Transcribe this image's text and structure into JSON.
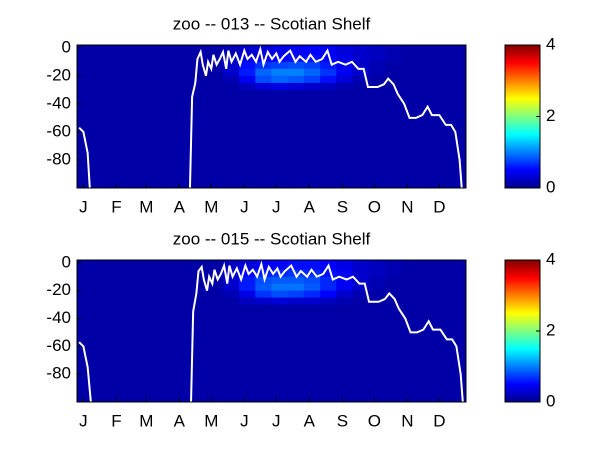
{
  "chart_data": [
    {
      "type": "heatmap",
      "title": "zoo -- 013 -- Scotian Shelf",
      "xlim": [
        0,
        365
      ],
      "ylim": [
        -100,
        2
      ],
      "xticks": [
        {
          "value": 6,
          "label": "J"
        },
        {
          "value": 37,
          "label": "F"
        },
        {
          "value": 65,
          "label": "M"
        },
        {
          "value": 96,
          "label": "A"
        },
        {
          "value": 126,
          "label": "M"
        },
        {
          "value": 157,
          "label": "J"
        },
        {
          "value": 187,
          "label": "J"
        },
        {
          "value": 218,
          "label": "A"
        },
        {
          "value": 249,
          "label": "S"
        },
        {
          "value": 279,
          "label": "O"
        },
        {
          "value": 310,
          "label": "N"
        },
        {
          "value": 340,
          "label": "D"
        }
      ],
      "yticks": [
        0,
        -20,
        -40,
        -60,
        -80
      ],
      "y_bins": [
        2,
        -5,
        -10,
        -15,
        -20,
        -25,
        -30,
        -100
      ],
      "z": [
        [
          0.15,
          0.15,
          0.15,
          0.15,
          0.15,
          0.15,
          0.15,
          0.15,
          0.15,
          0.2,
          0.3,
          0.35,
          0.4,
          0.45,
          0.5,
          0.45,
          0.35,
          0.3,
          0.25,
          0.2,
          0.15,
          0.15,
          0.15,
          0.15
        ],
        [
          0.15,
          0.15,
          0.15,
          0.15,
          0.15,
          0.15,
          0.15,
          0.15,
          0.15,
          0.25,
          0.4,
          0.45,
          0.5,
          0.55,
          0.55,
          0.5,
          0.4,
          0.3,
          0.25,
          0.2,
          0.15,
          0.15,
          0.15,
          0.15
        ],
        [
          0.15,
          0.15,
          0.15,
          0.15,
          0.15,
          0.15,
          0.15,
          0.15,
          0.15,
          0.3,
          0.55,
          0.7,
          0.75,
          0.8,
          0.75,
          0.6,
          0.45,
          0.3,
          0.2,
          0.15,
          0.15,
          0.15,
          0.15,
          0.15
        ],
        [
          0.15,
          0.15,
          0.15,
          0.15,
          0.15,
          0.15,
          0.15,
          0.15,
          0.15,
          0.3,
          0.6,
          0.9,
          1.0,
          1.0,
          0.9,
          0.7,
          0.45,
          0.3,
          0.2,
          0.15,
          0.15,
          0.15,
          0.15,
          0.15
        ],
        [
          0.15,
          0.15,
          0.15,
          0.15,
          0.15,
          0.15,
          0.15,
          0.15,
          0.15,
          0.2,
          0.45,
          0.8,
          0.9,
          0.85,
          0.75,
          0.55,
          0.35,
          0.2,
          0.15,
          0.15,
          0.15,
          0.15,
          0.15,
          0.15
        ],
        [
          0.15,
          0.15,
          0.15,
          0.15,
          0.15,
          0.15,
          0.15,
          0.15,
          0.15,
          0.15,
          0.25,
          0.35,
          0.4,
          0.35,
          0.3,
          0.25,
          0.2,
          0.15,
          0.15,
          0.15,
          0.15,
          0.15,
          0.15,
          0.15
        ],
        [
          0.15,
          0.15,
          0.15,
          0.15,
          0.15,
          0.15,
          0.15,
          0.15,
          0.15,
          0.15,
          0.15,
          0.15,
          0.15,
          0.15,
          0.15,
          0.15,
          0.15,
          0.15,
          0.15,
          0.15,
          0.15,
          0.15,
          0.15,
          0.15
        ]
      ],
      "clim": [
        0,
        4
      ],
      "cticks": [
        0,
        2,
        4
      ],
      "line": {
        "color": "#ffffff",
        "x": [
          2,
          6,
          10,
          12,
          null,
          106,
          108,
          111,
          113,
          116,
          118,
          121,
          123,
          126,
          128,
          131,
          134,
          137,
          140,
          142,
          145,
          149,
          153,
          157,
          160,
          164,
          168,
          172,
          175,
          179,
          183,
          187,
          190,
          194,
          200,
          205,
          209,
          215,
          219,
          224,
          230,
          235,
          239,
          245,
          252,
          258,
          264,
          269,
          273,
          282,
          288,
          292,
          297,
          301,
          307,
          312,
          318,
          324,
          329,
          333,
          340,
          346,
          351,
          355,
          359,
          361
        ],
        "y": [
          -57,
          -60,
          -75,
          -100,
          null,
          -100,
          -35,
          -25,
          -8,
          -3,
          -12,
          -20,
          -10,
          -15,
          -5,
          -12,
          -8,
          -3,
          -15,
          -2,
          -10,
          -4,
          -12,
          -2,
          -8,
          -5,
          -10,
          -1,
          -12,
          -3,
          -8,
          -4,
          -10,
          -6,
          -2,
          -10,
          -6,
          -10,
          -5,
          -10,
          -8,
          -2,
          -12,
          -10,
          -12,
          -10,
          -15,
          -15,
          -28,
          -28,
          -26,
          -22,
          -26,
          -33,
          -40,
          -50,
          -50,
          -48,
          -42,
          -48,
          -48,
          -55,
          -55,
          -60,
          -80,
          -100
        ]
      }
    },
    {
      "type": "heatmap",
      "title": "zoo -- 015 -- Scotian Shelf",
      "xlim": [
        0,
        365
      ],
      "ylim": [
        -100,
        2
      ],
      "xticks": [
        {
          "value": 6,
          "label": "J"
        },
        {
          "value": 37,
          "label": "F"
        },
        {
          "value": 65,
          "label": "M"
        },
        {
          "value": 96,
          "label": "A"
        },
        {
          "value": 126,
          "label": "M"
        },
        {
          "value": 157,
          "label": "J"
        },
        {
          "value": 187,
          "label": "J"
        },
        {
          "value": 218,
          "label": "A"
        },
        {
          "value": 249,
          "label": "S"
        },
        {
          "value": 279,
          "label": "O"
        },
        {
          "value": 310,
          "label": "N"
        },
        {
          "value": 340,
          "label": "D"
        }
      ],
      "yticks": [
        0,
        -20,
        -40,
        -60,
        -80
      ],
      "y_bins": [
        2,
        -5,
        -10,
        -15,
        -20,
        -25,
        -30,
        -100
      ],
      "z": [
        [
          0.15,
          0.15,
          0.15,
          0.15,
          0.15,
          0.15,
          0.15,
          0.15,
          0.15,
          0.25,
          0.35,
          0.45,
          0.5,
          0.55,
          0.55,
          0.5,
          0.4,
          0.3,
          0.25,
          0.2,
          0.15,
          0.15,
          0.15,
          0.15
        ],
        [
          0.15,
          0.15,
          0.15,
          0.15,
          0.15,
          0.15,
          0.15,
          0.15,
          0.15,
          0.3,
          0.5,
          0.6,
          0.65,
          0.7,
          0.65,
          0.55,
          0.45,
          0.3,
          0.25,
          0.2,
          0.15,
          0.15,
          0.15,
          0.15
        ],
        [
          0.15,
          0.15,
          0.15,
          0.15,
          0.15,
          0.15,
          0.15,
          0.15,
          0.15,
          0.3,
          0.6,
          0.8,
          0.85,
          0.85,
          0.8,
          0.65,
          0.45,
          0.3,
          0.2,
          0.15,
          0.15,
          0.15,
          0.15,
          0.15
        ],
        [
          0.15,
          0.15,
          0.15,
          0.15,
          0.15,
          0.15,
          0.15,
          0.15,
          0.15,
          0.3,
          0.6,
          0.85,
          0.95,
          0.95,
          0.85,
          0.65,
          0.45,
          0.3,
          0.2,
          0.15,
          0.15,
          0.15,
          0.15,
          0.15
        ],
        [
          0.15,
          0.15,
          0.15,
          0.15,
          0.15,
          0.15,
          0.15,
          0.15,
          0.15,
          0.2,
          0.4,
          0.7,
          0.8,
          0.75,
          0.65,
          0.5,
          0.3,
          0.2,
          0.15,
          0.15,
          0.15,
          0.15,
          0.15,
          0.15
        ],
        [
          0.15,
          0.15,
          0.15,
          0.15,
          0.15,
          0.15,
          0.15,
          0.15,
          0.15,
          0.15,
          0.25,
          0.3,
          0.35,
          0.3,
          0.3,
          0.25,
          0.2,
          0.15,
          0.15,
          0.15,
          0.15,
          0.15,
          0.15,
          0.15
        ],
        [
          0.15,
          0.15,
          0.15,
          0.15,
          0.15,
          0.15,
          0.15,
          0.15,
          0.15,
          0.15,
          0.15,
          0.15,
          0.15,
          0.15,
          0.15,
          0.15,
          0.15,
          0.15,
          0.15,
          0.15,
          0.15,
          0.15,
          0.15,
          0.15
        ]
      ],
      "clim": [
        0,
        4
      ],
      "cticks": [
        0,
        2,
        4
      ],
      "line": {
        "color": "#ffffff",
        "x": [
          2,
          6,
          10,
          13,
          null,
          107,
          109,
          112,
          114,
          117,
          119,
          122,
          124,
          127,
          129,
          132,
          135,
          138,
          141,
          143,
          146,
          150,
          154,
          158,
          161,
          165,
          169,
          173,
          176,
          180,
          184,
          188,
          191,
          195,
          201,
          206,
          210,
          216,
          220,
          225,
          231,
          236,
          240,
          246,
          253,
          259,
          265,
          270,
          274,
          283,
          289,
          293,
          298,
          302,
          308,
          313,
          319,
          325,
          330,
          334,
          341,
          347,
          352,
          356,
          360,
          362
        ],
        "y": [
          -57,
          -60,
          -75,
          -100,
          null,
          -100,
          -35,
          -22,
          -6,
          -3,
          -12,
          -20,
          -10,
          -15,
          -5,
          -12,
          -8,
          -2,
          -15,
          -2,
          -10,
          -4,
          -12,
          -2,
          -8,
          -5,
          -10,
          -1,
          -12,
          -3,
          -8,
          -4,
          -10,
          -6,
          -2,
          -10,
          -6,
          -10,
          -5,
          -10,
          -8,
          -2,
          -12,
          -10,
          -12,
          -10,
          -15,
          -15,
          -28,
          -28,
          -26,
          -22,
          -26,
          -33,
          -40,
          -50,
          -50,
          -48,
          -42,
          -48,
          -48,
          -55,
          -55,
          -60,
          -80,
          -100
        ]
      }
    }
  ]
}
